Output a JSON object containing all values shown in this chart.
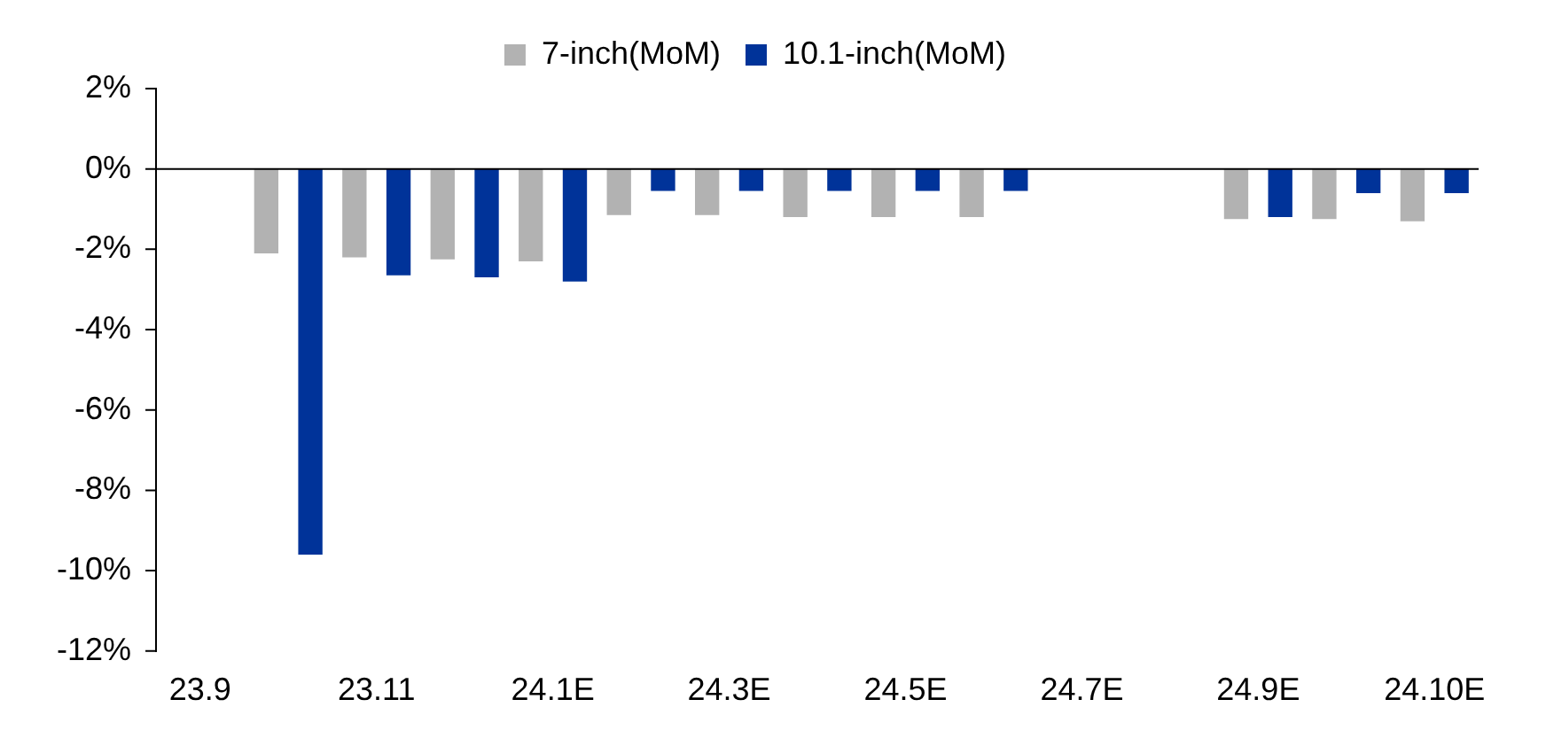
{
  "chart_data": {
    "type": "bar",
    "categories": [
      "23.9",
      null,
      "23.11",
      null,
      "24.1E",
      null,
      "24.3E",
      null,
      "24.5E",
      null,
      "24.7E",
      null,
      "24.9E",
      null,
      "24.10E"
    ],
    "series": [
      {
        "name": "7-inch(MoM)",
        "color": "#b2b2b2",
        "values": [
          null,
          -2.1,
          -2.2,
          -2.25,
          -2.3,
          -1.15,
          -1.15,
          -1.2,
          -1.2,
          -1.2,
          null,
          null,
          -1.25,
          -1.25,
          -1.3
        ]
      },
      {
        "name": "10.1-inch(MoM)",
        "color": "#003399",
        "values": [
          null,
          -9.6,
          -2.65,
          -2.7,
          -2.8,
          -0.55,
          -0.55,
          -0.55,
          -0.55,
          -0.55,
          null,
          null,
          -1.2,
          -0.6,
          -0.6
        ]
      }
    ],
    "ylim": [
      -12,
      2
    ],
    "yticks": [
      {
        "value": 2,
        "label": "2%"
      },
      {
        "value": 0,
        "label": "0%"
      },
      {
        "value": -2,
        "label": "-2%"
      },
      {
        "value": -4,
        "label": "-4%"
      },
      {
        "value": -6,
        "label": "-6%"
      },
      {
        "value": -8,
        "label": "-8%"
      },
      {
        "value": -10,
        "label": "-10%"
      },
      {
        "value": -12,
        "label": "-12%"
      }
    ],
    "legend": "top"
  }
}
